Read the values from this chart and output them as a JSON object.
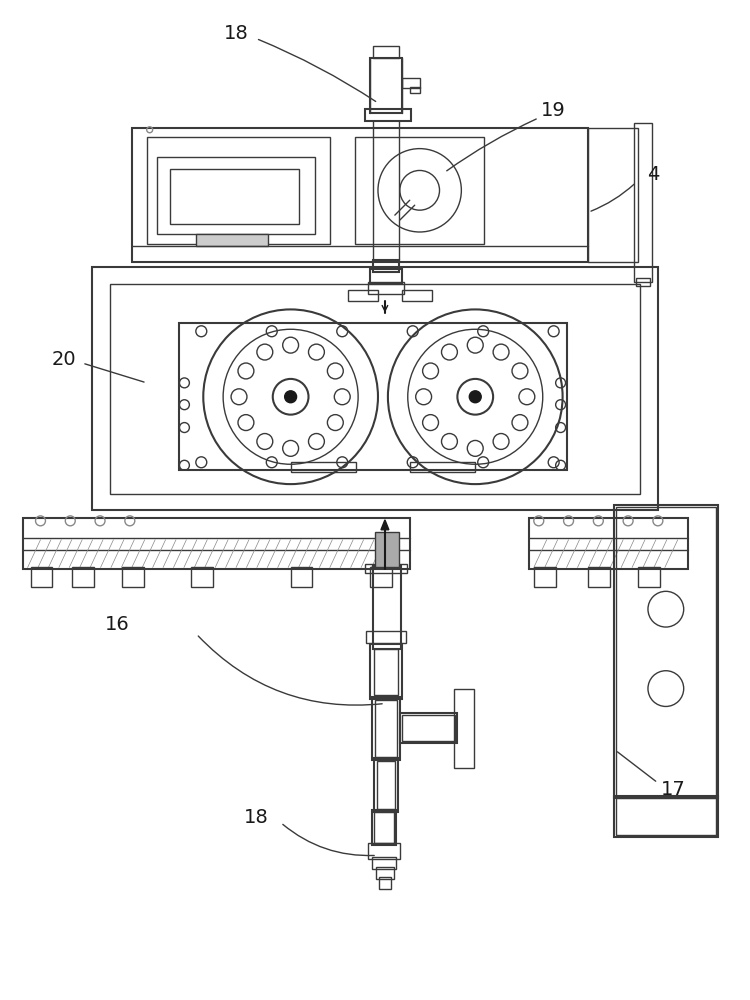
{
  "bg_color": "#ffffff",
  "lc": "#3a3a3a",
  "lc_dark": "#1a1a1a",
  "lc_light": "#888888",
  "lc_mid": "#555555",
  "fig_width": 7.5,
  "fig_height": 10.0,
  "dpi": 100
}
